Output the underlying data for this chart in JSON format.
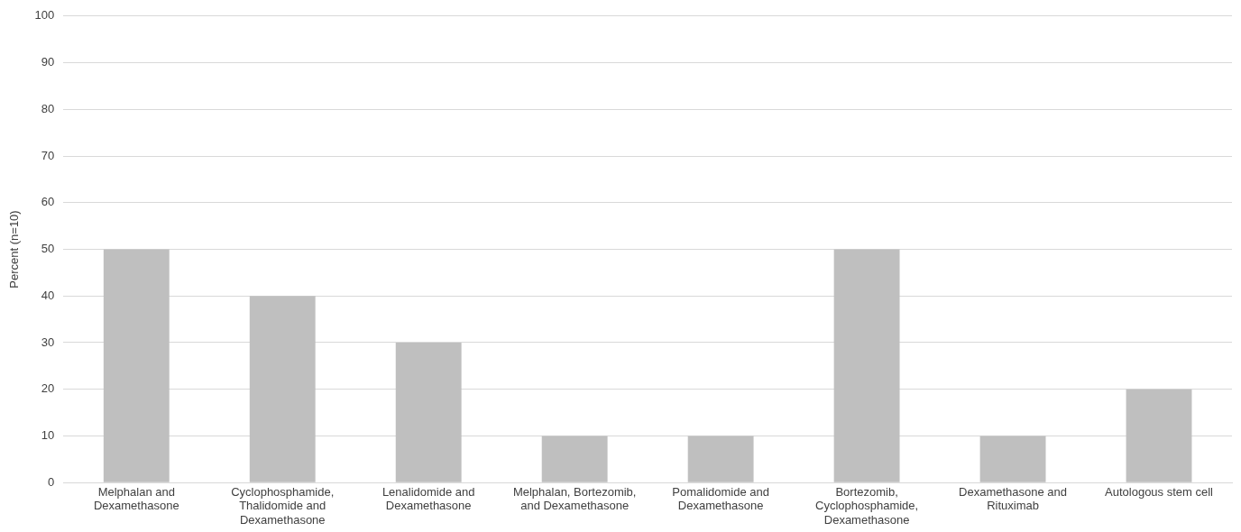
{
  "chart_data": {
    "type": "bar",
    "ylabel": "Percent (n=10)",
    "categories": [
      "Melphalan and Dexamethasone",
      "Cyclophosphamide, Thalidomide and Dexamethasone",
      "Lenalidomide and Dexamethasone",
      "Melphalan, Bortezomib, and Dexamethasone",
      "Pomalidomide and Dexamethasone",
      "Bortezomib, Cyclophosphamide, Dexamethasone",
      "Dexamethasone and Rituximab",
      "Autologous stem cell"
    ],
    "values": [
      50,
      40,
      30,
      10,
      10,
      50,
      10,
      20
    ],
    "color": "#bfbfbf",
    "ylim": [
      0,
      100
    ],
    "yticks": [
      0,
      10,
      20,
      30,
      40,
      50,
      60,
      70,
      80,
      90,
      100
    ],
    "grid": "y",
    "legend": false
  }
}
